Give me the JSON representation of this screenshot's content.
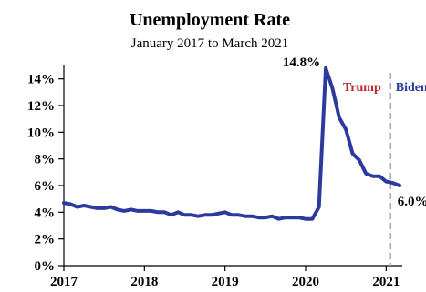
{
  "chart_data": {
    "type": "line",
    "title": "Unemployment Rate",
    "subtitle": "January 2017 to March 2021",
    "xlabel": "",
    "ylabel": "",
    "xlim": [
      2017.0,
      2021.2
    ],
    "ylim": [
      0,
      15
    ],
    "x_ticks": [
      2017,
      2018,
      2019,
      2020,
      2021
    ],
    "y_ticks": [
      0,
      2,
      4,
      6,
      8,
      10,
      12,
      14
    ],
    "y_tick_labels": [
      "0%",
      "2%",
      "4%",
      "6%",
      "8%",
      "10%",
      "12%",
      "14%"
    ],
    "x_tick_labels": [
      "2017",
      "2018",
      "2019",
      "2020",
      "2021"
    ],
    "grid": false,
    "series": [
      {
        "color": "#2b3a9c",
        "x": [
          2017.0,
          2017.0833,
          2017.1667,
          2017.25,
          2017.3333,
          2017.4167,
          2017.5,
          2017.5833,
          2017.6667,
          2017.75,
          2017.8333,
          2017.9167,
          2018.0,
          2018.0833,
          2018.1667,
          2018.25,
          2018.3333,
          2018.4167,
          2018.5,
          2018.5833,
          2018.6667,
          2018.75,
          2018.8333,
          2018.9167,
          2019.0,
          2019.0833,
          2019.1667,
          2019.25,
          2019.3333,
          2019.4167,
          2019.5,
          2019.5833,
          2019.6667,
          2019.75,
          2019.8333,
          2019.9167,
          2020.0,
          2020.0833,
          2020.1667,
          2020.25,
          2020.3333,
          2020.4167,
          2020.5,
          2020.5833,
          2020.6667,
          2020.75,
          2020.8333,
          2020.9167,
          2021.0,
          2021.0833,
          2021.1667
        ],
        "values": [
          4.7,
          4.6,
          4.4,
          4.5,
          4.4,
          4.3,
          4.3,
          4.4,
          4.2,
          4.1,
          4.2,
          4.1,
          4.1,
          4.1,
          4.0,
          4.0,
          3.8,
          4.0,
          3.8,
          3.8,
          3.7,
          3.8,
          3.8,
          3.9,
          4.0,
          3.8,
          3.8,
          3.7,
          3.7,
          3.6,
          3.6,
          3.7,
          3.5,
          3.6,
          3.6,
          3.6,
          3.5,
          3.5,
          4.4,
          14.8,
          13.3,
          11.1,
          10.2,
          8.4,
          7.9,
          6.9,
          6.7,
          6.7,
          6.3,
          6.2,
          6.0
        ]
      }
    ],
    "annotations": {
      "peak_label": "14.8%",
      "end_label": "6.0%",
      "trump_label": "Trump",
      "biden_label": "Biden",
      "trump_color": "#c0272d",
      "biden_color": "#2b3a9c",
      "divider_x": 2021.05,
      "divider_color": "#aaaaaa"
    }
  }
}
